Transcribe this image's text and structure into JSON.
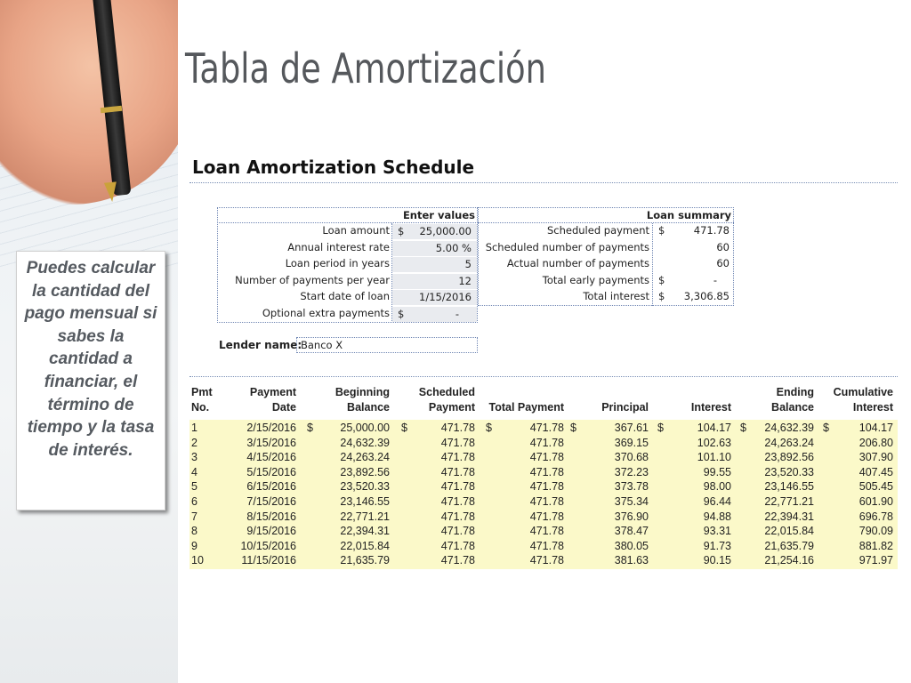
{
  "slide": {
    "title": "Tabla de Amortización",
    "callout": "Puedes calcular la cantidad del pago mensual si sabes la cantidad a financiar, el término de tiempo y la tasa de interés."
  },
  "sheet": {
    "title": "Loan Amortization Schedule",
    "enter_values_header": "Enter values",
    "loan_summary_header": "Loan summary",
    "inputs": [
      {
        "label": "Loan amount",
        "currency": "$",
        "value": "25,000.00"
      },
      {
        "label": "Annual interest rate",
        "currency": "",
        "value": "5.00 %"
      },
      {
        "label": "Loan period in years",
        "currency": "",
        "value": "5"
      },
      {
        "label": "Number of payments per year",
        "currency": "",
        "value": "12"
      },
      {
        "label": "Start date of loan",
        "currency": "",
        "value": "1/15/2016"
      },
      {
        "label": "Optional extra payments",
        "currency": "$",
        "value": "-"
      }
    ],
    "summary": [
      {
        "label": "Scheduled payment",
        "currency": "$",
        "value": "471.78"
      },
      {
        "label": "Scheduled number of payments",
        "currency": "",
        "value": "60"
      },
      {
        "label": "Actual number of payments",
        "currency": "",
        "value": "60"
      },
      {
        "label": "Total early payments",
        "currency": "$",
        "value": "-"
      },
      {
        "label": "Total interest",
        "currency": "$",
        "value": "3,306.85"
      }
    ],
    "lender_label": "Lender name:",
    "lender_value": "Banco X"
  },
  "table": {
    "headers": {
      "pmt": [
        "Pmt",
        "No."
      ],
      "date": [
        "Payment",
        "Date"
      ],
      "beg": [
        "Beginning",
        "Balance"
      ],
      "sched": [
        "Scheduled",
        "Payment"
      ],
      "total": [
        "",
        "Total Payment"
      ],
      "principal": [
        "",
        "Principal"
      ],
      "interest": [
        "",
        "Interest"
      ],
      "end": [
        "Ending",
        "Balance"
      ],
      "cum": [
        "Cumulative",
        "Interest"
      ]
    },
    "currency_symbol": "$",
    "rows": [
      [
        "1",
        "2/15/2016",
        "25,000.00",
        "471.78",
        "471.78",
        "367.61",
        "104.17",
        "24,632.39",
        "104.17"
      ],
      [
        "2",
        "3/15/2016",
        "24,632.39",
        "471.78",
        "471.78",
        "369.15",
        "102.63",
        "24,263.24",
        "206.80"
      ],
      [
        "3",
        "4/15/2016",
        "24,263.24",
        "471.78",
        "471.78",
        "370.68",
        "101.10",
        "23,892.56",
        "307.90"
      ],
      [
        "4",
        "5/15/2016",
        "23,892.56",
        "471.78",
        "471.78",
        "372.23",
        "99.55",
        "23,520.33",
        "407.45"
      ],
      [
        "5",
        "6/15/2016",
        "23,520.33",
        "471.78",
        "471.78",
        "373.78",
        "98.00",
        "23,146.55",
        "505.45"
      ],
      [
        "6",
        "7/15/2016",
        "23,146.55",
        "471.78",
        "471.78",
        "375.34",
        "96.44",
        "22,771.21",
        "601.90"
      ],
      [
        "7",
        "8/15/2016",
        "22,771.21",
        "471.78",
        "471.78",
        "376.90",
        "94.88",
        "22,394.31",
        "696.78"
      ],
      [
        "8",
        "9/15/2016",
        "22,394.31",
        "471.78",
        "471.78",
        "378.47",
        "93.31",
        "22,015.84",
        "790.09"
      ],
      [
        "9",
        "10/15/2016",
        "22,015.84",
        "471.78",
        "471.78",
        "380.05",
        "91.73",
        "21,635.79",
        "881.82"
      ],
      [
        "10",
        "11/15/2016",
        "21,635.79",
        "471.78",
        "471.78",
        "381.63",
        "90.15",
        "21,254.16",
        "971.97"
      ]
    ]
  }
}
